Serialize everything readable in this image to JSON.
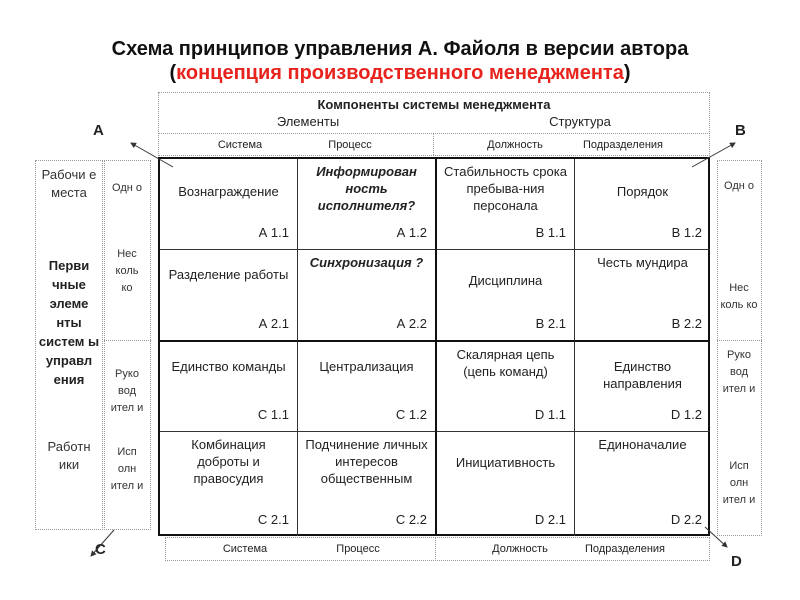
{
  "title": {
    "line1": "Схема принципов управления А. Файоля в версии автора",
    "open": "(",
    "line2": "концепция производственного менеджмента",
    "close": ")"
  },
  "header": {
    "main": "Компоненты системы менеджмента",
    "elements": "Элементы",
    "structure": "Структура",
    "cols": [
      "Система",
      "Процесс",
      "Должность",
      "Подразделения"
    ]
  },
  "corners": {
    "a": "A",
    "b": "B",
    "c": "C",
    "d": "D"
  },
  "cells": [
    {
      "text": "Вознаграждение",
      "code": "А 1.1"
    },
    {
      "text": "Информирован ность исполнителя?",
      "code": "А 1.2"
    },
    {
      "text": "Стабильность срока пребыва-ния персонала",
      "code": "В 1.1"
    },
    {
      "text": "Порядок",
      "code": "В 1.2"
    },
    {
      "text": "Разделение работы",
      "code": "А 2.1"
    },
    {
      "text": "Синхронизация ?",
      "code": "А 2.2"
    },
    {
      "text": "Дисциплина",
      "code": "В 2.1"
    },
    {
      "text": "Честь мундира",
      "code": "В 2.2"
    },
    {
      "text": "Единство команды",
      "code": "С 1.1"
    },
    {
      "text": "Централизация",
      "code": "С 1.2"
    },
    {
      "text": "Скалярная цепь (цепь команд)",
      "code": "D 1.1"
    },
    {
      "text": "Единство направления",
      "code": "D 1.2"
    },
    {
      "text": "Комбинация доброты и правосудия",
      "code": "С 2.1"
    },
    {
      "text": "Подчинение личных интересов общественным",
      "code": "С 2.2"
    },
    {
      "text": "Инициативность",
      "code": "D 2.1"
    },
    {
      "text": "Единоначалие",
      "code": "D 2.2"
    }
  ],
  "left": {
    "workplaces": "Рабочи е места",
    "primary": "Перви чные элеме нты систем ы управл ения",
    "workers": "Работн ики",
    "one": "Одн о",
    "several": "Нес коль ко",
    "managers": "Руко вод ител и",
    "executors": "Исп олн ител и"
  },
  "right": {
    "one": "Одн о",
    "several": "Нес коль ко",
    "managers": "Руко вод ител и",
    "executors": "Исп олн ител и"
  }
}
